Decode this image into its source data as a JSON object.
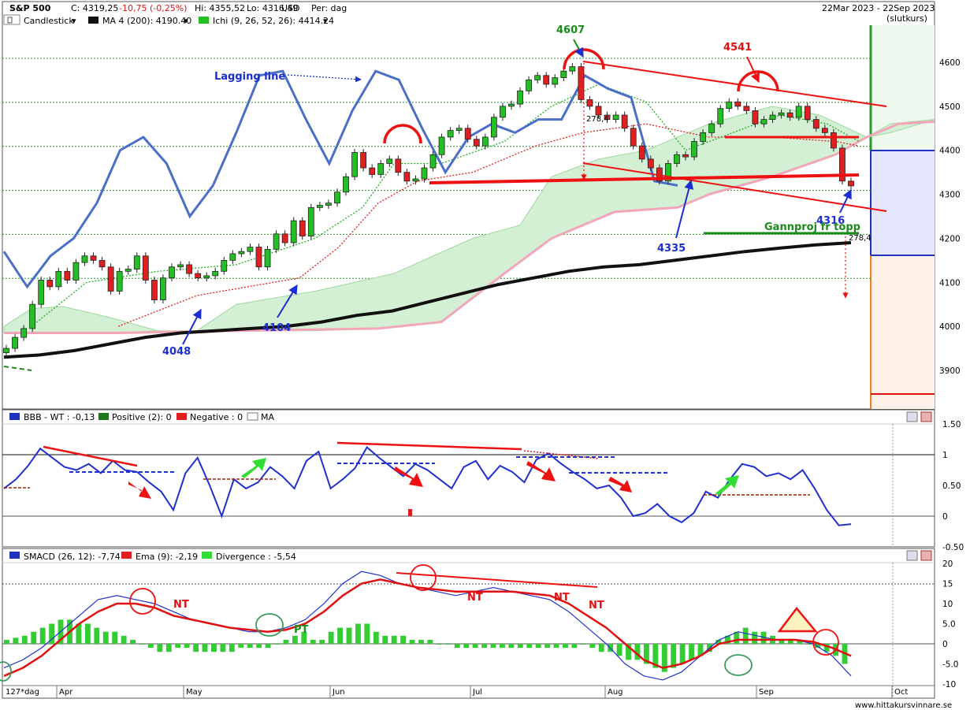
{
  "header": {
    "symbol": "S&P 500",
    "close": "C: 4319,25",
    "change": "-10,75 (-0,25%)",
    "high": "Hi: 4355,52",
    "low": "Lo: 4316,49",
    "currency": "USD",
    "period": "Per: dag",
    "date_range": "22Mar 2023 - 22Sep 2023",
    "range_note": "(slutkurs)"
  },
  "legend": {
    "candlestick": "Candlestick",
    "ma": "MA 4 (200): 4190.40",
    "ichi": "Ichi (9, 26, 52, 26): 4414.24"
  },
  "colors": {
    "up": "#22c022",
    "down": "#e02020",
    "ma": "#111111",
    "lagging": "#4a6fc8",
    "cloud_fill": "#cfeecf",
    "cloud_edge": "#f2a6b8",
    "annotation_red": "#ee1111",
    "annotation_blue": "#1a2fd0",
    "annotation_green": "#1a8a1a",
    "grid_green": "#2a9a2a"
  },
  "price_axis": {
    "ticks": [
      "4600",
      "4500",
      "4400",
      "4300",
      "4200",
      "4100",
      "4000",
      "3900"
    ]
  },
  "annotations": {
    "a4607": "4607",
    "a4541": "4541",
    "lagging": "Lagging line",
    "a4048": "4048",
    "a4104": "4104",
    "a4335": "4335",
    "a4316": "4316",
    "gann": "Gannproj fr topp",
    "m1": "278,4",
    "m2": "278,4"
  },
  "bbb_panel": {
    "label": "BBB - WT : -0,13",
    "pos_label": "Positive (2): 0",
    "neg_label": "Negative : 0",
    "ma_label": "MA",
    "ticks": [
      "1.50",
      "1",
      "0.50",
      "0",
      "-0.50"
    ]
  },
  "macd_panel": {
    "label": "SMACD (26, 12): -7,74",
    "ema_label": "Ema (9): -2,19",
    "div_label": "Divergence : -5,54",
    "ticks": [
      "20",
      "15",
      "10",
      "5.0",
      "0",
      "-5.0",
      "-10"
    ],
    "nt": "NT",
    "pt": "PT"
  },
  "x_axis": {
    "period_label": "127*dag",
    "months": [
      "Apr",
      "May",
      "Jun",
      "Jul",
      "Aug",
      "Sep",
      "Oct"
    ]
  },
  "footer": {
    "site": "www.hittakursvinnare.se"
  },
  "chart_data": {
    "type": "candlestick",
    "title": "S&P 500",
    "ylim": [
      3820,
      4690
    ],
    "x": [
      "Apr",
      "May",
      "Jun",
      "Jul",
      "Aug",
      "Sep",
      "Oct"
    ],
    "close_series": [
      3950,
      3975,
      3995,
      4050,
      4105,
      4090,
      4125,
      4105,
      4145,
      4160,
      4150,
      4135,
      4080,
      4125,
      4130,
      4160,
      4105,
      4060,
      4110,
      4135,
      4140,
      4120,
      4110,
      4115,
      4125,
      4150,
      4165,
      4170,
      4180,
      4135,
      4175,
      4210,
      4190,
      4240,
      4205,
      4270,
      4275,
      4280,
      4305,
      4340,
      4395,
      4360,
      4345,
      4370,
      4380,
      4350,
      4330,
      4335,
      4360,
      4390,
      4430,
      4445,
      4450,
      4425,
      4410,
      4430,
      4475,
      4500,
      4505,
      4535,
      4560,
      4570,
      4550,
      4565,
      4580,
      4590,
      4515,
      4500,
      4480,
      4470,
      4480,
      4450,
      4410,
      4380,
      4360,
      4330,
      4370,
      4390,
      4385,
      4420,
      4440,
      4460,
      4495,
      4510,
      4500,
      4490,
      4460,
      4470,
      4480,
      4485,
      4475,
      4500,
      4470,
      4450,
      4440,
      4405,
      4330,
      4319
    ],
    "ma200": [
      3930,
      3935,
      3945,
      3960,
      3975,
      3985,
      3990,
      3995,
      4000,
      4010,
      4025,
      4035,
      4055,
      4075,
      4095,
      4110,
      4125,
      4135,
      4140,
      4150,
      4160,
      4170,
      4178,
      4185,
      4190
    ],
    "lagging_line": [
      4170,
      4090,
      4160,
      4200,
      4280,
      4400,
      4430,
      4370,
      4250,
      4320,
      4440,
      4570,
      4580,
      4470,
      4370,
      4490,
      4580,
      4560,
      4450,
      4350,
      4430,
      4460,
      4440,
      4470,
      4470,
      4570,
      4540,
      4520,
      4330,
      4320
    ]
  }
}
